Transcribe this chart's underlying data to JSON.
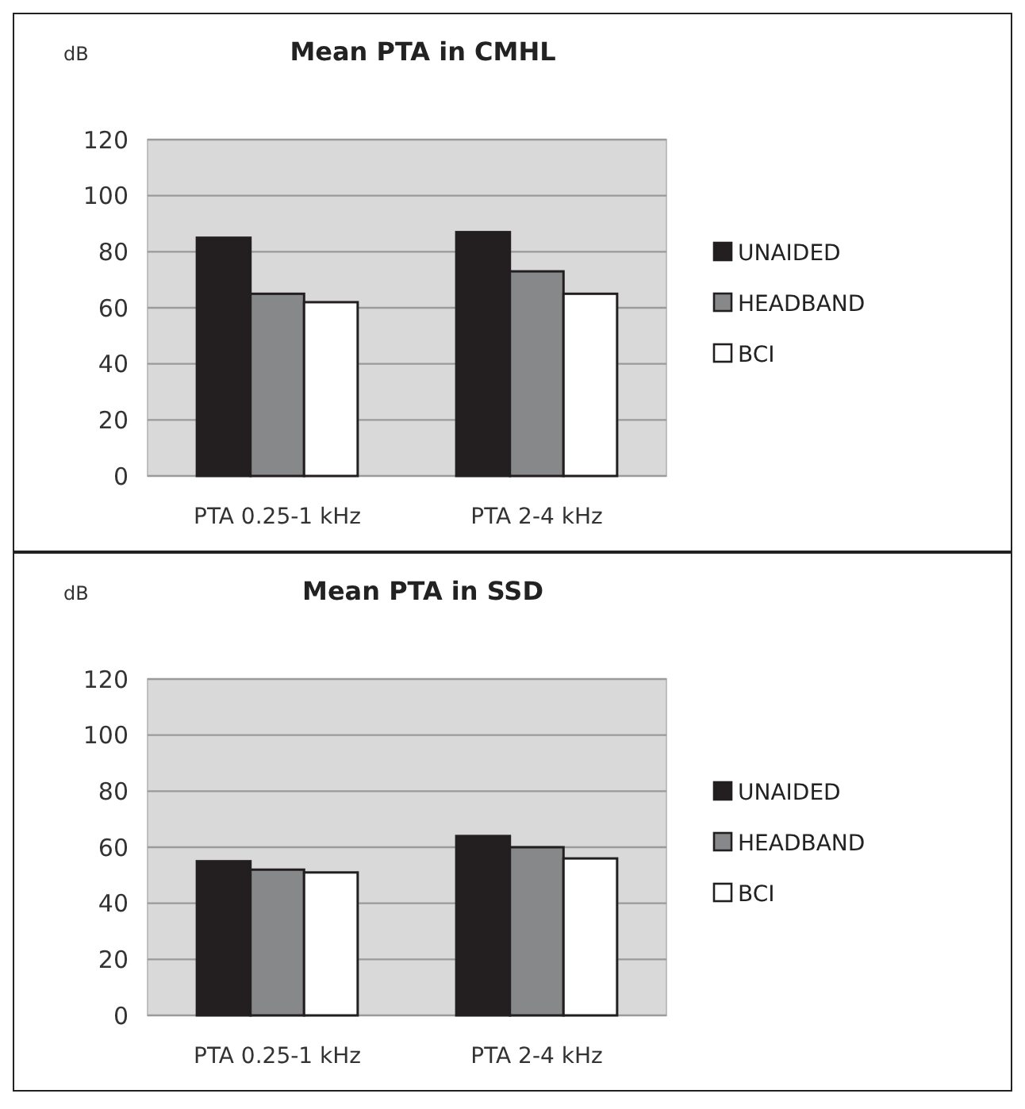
{
  "chart_data": [
    {
      "type": "bar",
      "title": "Mean PTA in CMHL",
      "ylabel": "dB",
      "categories": [
        "PTA 0.25-1 kHz",
        "PTA 2-4 kHz"
      ],
      "series": [
        {
          "name": "UNAIDED",
          "color": "#231f20",
          "values": [
            85,
            87
          ]
        },
        {
          "name": "HEADBAND",
          "color": "#87888a",
          "values": [
            65,
            73
          ]
        },
        {
          "name": "BCI",
          "color": "#ffffff",
          "values": [
            62,
            65
          ]
        }
      ],
      "ylim": [
        0,
        120
      ],
      "yticks": [
        0,
        20,
        40,
        60,
        80,
        100,
        120
      ],
      "grid": "y",
      "legend": "right"
    },
    {
      "type": "bar",
      "title": "Mean PTA in SSD",
      "ylabel": "dB",
      "categories": [
        "PTA 0.25-1 kHz",
        "PTA 2-4 kHz"
      ],
      "series": [
        {
          "name": "UNAIDED",
          "color": "#231f20",
          "values": [
            55,
            64
          ]
        },
        {
          "name": "HEADBAND",
          "color": "#87888a",
          "values": [
            52,
            60
          ]
        },
        {
          "name": "BCI",
          "color": "#ffffff",
          "values": [
            51,
            56
          ]
        }
      ],
      "ylim": [
        0,
        120
      ],
      "yticks": [
        0,
        20,
        40,
        60,
        80,
        100,
        120
      ],
      "grid": "y",
      "legend": "right"
    }
  ]
}
